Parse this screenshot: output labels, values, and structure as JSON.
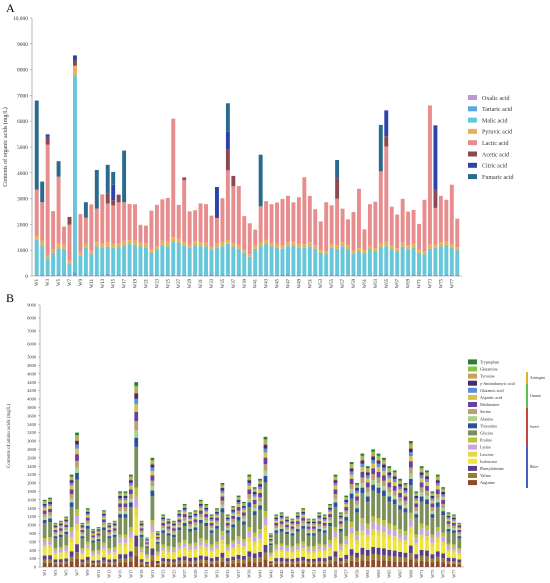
{
  "chart_data": [
    {
      "panel": "A",
      "type": "bar",
      "stacked": true,
      "ylabel": "Contents of organic acids (mg/L)",
      "ylim": [
        0,
        10000
      ],
      "yticks": [
        "0",
        "1000",
        "2000",
        "3000",
        "4000",
        "5000",
        "6000",
        "7000",
        "8000",
        "9000",
        "10,000"
      ],
      "categories": [
        "W1",
        "W2",
        "W3",
        "W4",
        "W5",
        "W6",
        "W7",
        "W8",
        "W9",
        "W10",
        "W11",
        "W12",
        "W13",
        "W14",
        "W15",
        "W16",
        "W17",
        "W18",
        "W19",
        "W20",
        "W21",
        "W22",
        "W23",
        "W24",
        "W25",
        "W26",
        "W27",
        "W28",
        "W29",
        "W30",
        "W31",
        "W32",
        "W33",
        "W34",
        "W35",
        "W36",
        "W37",
        "W38",
        "W39",
        "W40",
        "W41",
        "W42",
        "W43",
        "W44",
        "W45",
        "W46",
        "W47",
        "W48",
        "W49",
        "W50",
        "W51",
        "W52",
        "W53",
        "W54",
        "W55",
        "W56",
        "W57",
        "W58",
        "W59",
        "W60",
        "W61",
        "W62",
        "W63",
        "W64",
        "W65",
        "W66",
        "W67",
        "W68",
        "W69",
        "W70",
        "W71",
        "W72",
        "W73",
        "W74",
        "W75",
        "W76",
        "W77",
        "W78"
      ],
      "legend_position": "right",
      "series": [
        {
          "name": "Oxalic acid",
          "color": "#b79ad8",
          "values": [
            0,
            0,
            0,
            0,
            0,
            0,
            0,
            0,
            0,
            0,
            0,
            0,
            0,
            0,
            0,
            0,
            0,
            0,
            0,
            0,
            0,
            0,
            0,
            0,
            0,
            0,
            0,
            0,
            0,
            0,
            0,
            0,
            0,
            0,
            0,
            0,
            0,
            0,
            0,
            0,
            0,
            0,
            0,
            0,
            0,
            0,
            0,
            0,
            0,
            0,
            0,
            0,
            0,
            0,
            0,
            0,
            0,
            0,
            0,
            0,
            0,
            0,
            0,
            0,
            0,
            0,
            0,
            0,
            0,
            0,
            0,
            0,
            0,
            0,
            0,
            0,
            0,
            0
          ]
        },
        {
          "name": "Tartaric acid",
          "color": "#5aa6e0",
          "values": [
            50,
            60,
            40,
            45,
            70,
            55,
            40,
            150,
            30,
            60,
            45,
            50,
            60,
            80,
            45,
            55,
            50,
            40,
            60,
            45,
            50,
            55,
            40,
            60,
            55,
            50,
            45,
            40,
            35,
            50,
            55,
            45,
            60,
            50,
            55,
            45,
            40,
            60,
            50,
            45,
            55,
            50,
            40,
            45,
            50,
            55,
            60,
            45,
            50,
            40,
            55,
            60,
            45,
            50,
            40,
            55,
            50,
            45,
            60,
            50,
            40,
            45,
            50,
            55,
            60,
            45,
            50,
            40,
            55,
            60,
            50,
            45,
            60,
            50,
            45,
            55,
            50,
            40
          ]
        },
        {
          "name": "Malic acid",
          "color": "#66c7d9",
          "values": [
            1350,
            1100,
            650,
            850,
            1000,
            1000,
            450,
            7600,
            750,
            1050,
            800,
            1100,
            1050,
            1050,
            1050,
            1050,
            1150,
            1200,
            1150,
            1100,
            1050,
            850,
            1000,
            1150,
            1100,
            1300,
            1250,
            1150,
            1050,
            1150,
            1100,
            1100,
            950,
            1050,
            1100,
            1200,
            1100,
            1000,
            850,
            700,
            1000,
            1100,
            1200,
            1100,
            1050,
            1000,
            1100,
            1150,
            1050,
            1050,
            1100,
            1000,
            850,
            800,
            1050,
            1000,
            1100,
            1000,
            800,
            900,
            850,
            1000,
            900,
            1050,
            1100,
            1000,
            900,
            1100,
            1000,
            1050,
            850,
            800,
            1000,
            1050,
            1100,
            1150,
            1050,
            950
          ]
        },
        {
          "name": "Pyruvic acid",
          "color": "#e8b05a",
          "values": [
            150,
            200,
            100,
            120,
            180,
            160,
            100,
            400,
            120,
            150,
            130,
            160,
            150,
            180,
            140,
            150,
            160,
            150,
            170,
            140,
            150,
            130,
            120,
            160,
            170,
            150,
            160,
            130,
            120,
            150,
            160,
            140,
            130,
            150,
            160,
            150,
            140,
            130,
            120,
            100,
            140,
            150,
            160,
            140,
            150,
            130,
            150,
            160,
            150,
            140,
            150,
            130,
            120,
            110,
            150,
            140,
            160,
            150,
            120,
            130,
            120,
            140,
            130,
            150,
            160,
            140,
            130,
            150,
            140,
            150,
            120,
            110,
            150,
            140,
            160,
            150,
            140,
            130
          ]
        },
        {
          "name": "Lactic acid",
          "color": "#e88d8d",
          "values": [
            1800,
            1500,
            4300,
            1500,
            2600,
            700,
            1400,
            0,
            1500,
            1000,
            1800,
            1300,
            1900,
            1500,
            1500,
            1600,
            1500,
            1400,
            1400,
            700,
            700,
            1500,
            1600,
            1600,
            1700,
            4600,
            1300,
            2400,
            1300,
            1200,
            1500,
            1500,
            1200,
            1000,
            1700,
            2700,
            2200,
            2300,
            1300,
            1200,
            600,
            1400,
            1500,
            1500,
            1600,
            1800,
            1800,
            1500,
            1800,
            2600,
            1800,
            1400,
            1100,
            1900,
            1500,
            1800,
            1300,
            1000,
            1500,
            2300,
            800,
            1600,
            1800,
            2800,
            3700,
            1500,
            1300,
            1700,
            1300,
            1300,
            1000,
            2000,
            5400,
            1400,
            1800,
            1600,
            2300,
            1100
          ]
        },
        {
          "name": "Acetic acid",
          "color": "#8a4a52",
          "values": [
            0,
            0,
            300,
            0,
            0,
            0,
            300,
            200,
            0,
            0,
            0,
            0,
            0,
            400,
            200,
            300,
            0,
            0,
            0,
            0,
            0,
            0,
            0,
            0,
            0,
            0,
            0,
            100,
            0,
            0,
            0,
            0,
            0,
            0,
            0,
            800,
            400,
            0,
            0,
            0,
            0,
            0,
            0,
            0,
            0,
            0,
            0,
            0,
            0,
            0,
            0,
            0,
            0,
            0,
            0,
            800,
            0,
            0,
            0,
            0,
            0,
            0,
            0,
            0,
            400,
            0,
            0,
            0,
            0,
            0,
            0,
            0,
            0,
            700,
            0,
            0,
            0,
            0
          ]
        },
        {
          "name": "Citric acid",
          "color": "#2c44a8",
          "values": [
            0,
            0,
            100,
            0,
            0,
            0,
            0,
            200,
            0,
            0,
            0,
            0,
            0,
            0,
            600,
            0,
            0,
            0,
            0,
            0,
            0,
            0,
            0,
            0,
            0,
            0,
            0,
            0,
            0,
            0,
            0,
            0,
            0,
            1200,
            0,
            700,
            0,
            0,
            0,
            0,
            0,
            0,
            0,
            0,
            0,
            0,
            0,
            0,
            0,
            0,
            0,
            0,
            0,
            0,
            0,
            0,
            0,
            0,
            0,
            0,
            0,
            0,
            0,
            0,
            1000,
            0,
            0,
            0,
            0,
            0,
            0,
            0,
            0,
            2500,
            0,
            0,
            0,
            0
          ]
        },
        {
          "name": "Fumaric acid",
          "color": "#2a6a8c",
          "values": [
            3450,
            800,
            0,
            0,
            600,
            0,
            0,
            0,
            0,
            600,
            0,
            1500,
            0,
            1100,
            500,
            0,
            2000,
            0,
            0,
            0,
            0,
            0,
            0,
            0,
            0,
            0,
            0,
            0,
            0,
            0,
            0,
            0,
            0,
            0,
            0,
            1100,
            0,
            0,
            0,
            0,
            0,
            2000,
            0,
            0,
            0,
            0,
            0,
            0,
            0,
            0,
            0,
            0,
            0,
            0,
            0,
            700,
            0,
            0,
            0,
            0,
            0,
            0,
            0,
            1800,
            0,
            0,
            0,
            0,
            0,
            0,
            0,
            0,
            0,
            0,
            0,
            0,
            0,
            0
          ]
        }
      ],
      "x_tick_labels_visible": [
        "W1",
        "W3",
        "W5",
        "W7",
        "W9",
        "W11",
        "W13",
        "W15",
        "W17",
        "W19",
        "W21",
        "W23",
        "W25",
        "W27",
        "W29",
        "W31",
        "W33",
        "W35",
        "W37",
        "W39",
        "W41",
        "W43",
        "W45",
        "W47",
        "W49",
        "W51",
        "W53",
        "W55",
        "W57",
        "W59",
        "W61",
        "W63",
        "W65",
        "W67",
        "W69",
        "W71",
        "W73",
        "W75",
        "W77"
      ]
    },
    {
      "panel": "B",
      "type": "bar",
      "stacked": true,
      "ylabel": "Contents of amino acids (mg/L)",
      "ylim": [
        0,
        9000
      ],
      "yticks": [
        "0",
        "200",
        "400",
        "600",
        "800",
        "1000",
        "1200",
        "1400",
        "1600",
        "1800",
        "2000",
        "2200",
        "2400",
        "2600",
        "2800",
        "3000",
        "3200",
        "3400",
        "3600",
        "3800",
        "4000",
        "4200",
        "4400",
        "4600",
        "4800",
        "5000",
        "6000",
        "7000",
        "8000",
        "9000"
      ],
      "categories": [
        "W1",
        "W2",
        "W3",
        "W4",
        "W5",
        "W6",
        "W7",
        "W8",
        "W9",
        "W10",
        "W11",
        "W12",
        "W13",
        "W14",
        "W15",
        "W16",
        "W17",
        "W18",
        "W19",
        "W20",
        "W21",
        "W22",
        "W23",
        "W24",
        "W25",
        "W26",
        "W27",
        "W28",
        "W29",
        "W30",
        "W31",
        "W32",
        "W33",
        "W34",
        "W35",
        "W36",
        "W37",
        "W38",
        "W39",
        "W40",
        "W41",
        "W42",
        "W43",
        "W44",
        "W45",
        "W46",
        "W47",
        "W48",
        "W49",
        "W50",
        "W51",
        "W52",
        "W53",
        "W54",
        "W55",
        "W56",
        "W57",
        "W58",
        "W59",
        "W60",
        "W61",
        "W62",
        "W63",
        "W64",
        "W65",
        "W66",
        "W67",
        "W68",
        "W69",
        "W70",
        "W71",
        "W72",
        "W73",
        "W74",
        "W75",
        "W76",
        "W77",
        "W78"
      ],
      "legend_position": "right",
      "group_labels": [
        "Astringent",
        "Umami",
        "Sweet",
        "Bitter"
      ],
      "group_colors": [
        "#e0b030",
        "#5cbf4f",
        "#c0463e",
        "#4a5fbf"
      ],
      "totals": [
        1600,
        1650,
        1050,
        1100,
        1200,
        2200,
        3200,
        1050,
        1400,
        900,
        950,
        1350,
        1050,
        1100,
        1800,
        1800,
        2200,
        4400,
        1100,
        700,
        2600,
        850,
        1250,
        1150,
        1100,
        1350,
        1500,
        1300,
        1350,
        1600,
        1500,
        1250,
        1400,
        2000,
        1250,
        1450,
        1700,
        1550,
        2200,
        1900,
        2100,
        3100,
        800,
        1250,
        1300,
        1200,
        1150,
        1300,
        1400,
        1150,
        1150,
        1300,
        1250,
        1500,
        2200,
        1300,
        1700,
        2500,
        2000,
        2700,
        2400,
        2800,
        2700,
        2600,
        2400,
        2300,
        2100,
        2000,
        3000,
        1800,
        2400,
        2300,
        1800,
        2200,
        1900,
        1300,
        1250,
        1050
      ],
      "series": [
        {
          "name": "Tryptophan",
          "color": "#2e7d32"
        },
        {
          "name": "Glutamine",
          "color": "#8bc34a"
        },
        {
          "name": "Tyrosine",
          "color": "#c4a35a"
        },
        {
          "name": "γ-Aminobutyric acid",
          "color": "#4b2a6a"
        },
        {
          "name": "Glutamic acid",
          "color": "#5c8fd6"
        },
        {
          "name": "Aspartic acid",
          "color": "#d8c24a"
        },
        {
          "name": "Methionine",
          "color": "#6b3fa0"
        },
        {
          "name": "Serine",
          "color": "#b8a070"
        },
        {
          "name": "Alanine",
          "color": "#a9d18e"
        },
        {
          "name": "Threonine",
          "color": "#2e4f9c"
        },
        {
          "name": "Glycine",
          "color": "#7a8f5a"
        },
        {
          "name": "Proline",
          "color": "#b5c23a"
        },
        {
          "name": "Lysine",
          "color": "#c9a6e3"
        },
        {
          "name": "Leucine",
          "color": "#e6d84a"
        },
        {
          "name": "Isoleucine",
          "color": "#f0e63a"
        },
        {
          "name": "Phenylalanine",
          "color": "#5a3d8a"
        },
        {
          "name": "Valine",
          "color": "#9c7b2e"
        },
        {
          "name": "Arginine",
          "color": "#8b4a2b"
        }
      ],
      "x_tick_labels_visible": [
        "W1",
        "W3",
        "W5",
        "W7",
        "W9",
        "W11",
        "W13",
        "W15",
        "W17",
        "W19",
        "W21",
        "W23",
        "W25",
        "W27",
        "W29",
        "W31",
        "W33",
        "W35",
        "W37",
        "W39",
        "W41",
        "W43",
        "W45",
        "W47",
        "W49",
        "W51",
        "W53",
        "W55",
        "W57",
        "W59",
        "W61",
        "W63",
        "W65",
        "W67",
        "W69",
        "W71",
        "W73",
        "W75",
        "W77"
      ]
    }
  ]
}
